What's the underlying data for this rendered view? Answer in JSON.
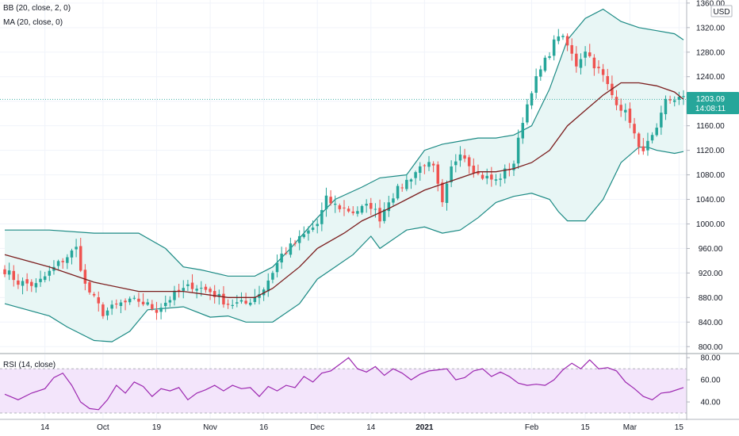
{
  "legend": {
    "bb": "BB (20, close, 2, 0)",
    "ma": "MA (20, close, 0)",
    "rsi": "RSI (14, close)"
  },
  "currency": "USD",
  "last_price": "1203.09",
  "countdown": "14:08:11",
  "colors": {
    "up": "#26a69a",
    "down": "#ef5350",
    "band": "#1b8a84",
    "band_fill": "#e8f6f5",
    "ma": "#7b1d1d",
    "rsi": "#9c27b0",
    "rsi_fill": "#f3e5fb",
    "price_tag": "#26a69a"
  },
  "chart_data": [
    {
      "type": "candlestick",
      "title": "",
      "y_ticks": [
        800,
        840,
        880,
        920,
        960,
        1000,
        1040,
        1080,
        1120,
        1160,
        1200,
        1240,
        1280,
        1320,
        1360
      ],
      "y_tick_labels": [
        "800.00",
        "840.00",
        "880.00",
        "920.00",
        "960.00",
        "1000.00",
        "1040.00",
        "1080.00",
        "1120.00",
        "1160.00",
        "1200.00",
        "1240.00",
        "1280.00",
        "1320.00",
        "1360.00"
      ],
      "ylim": [
        790,
        1365
      ],
      "x_tick_labels": [
        "14",
        "Oct",
        "19",
        "Nov",
        "16",
        "Dec",
        "14",
        "2021",
        "Feb",
        "15",
        "Mar",
        "15"
      ],
      "x_tick_bars": [
        9,
        22,
        34,
        46,
        58,
        70,
        82,
        94,
        118,
        130,
        140,
        151
      ],
      "bold_ticks": [
        "2021"
      ],
      "bars": 153,
      "anchors": {
        "bar": [
          0,
          3,
          7,
          12,
          16,
          18,
          22,
          26,
          30,
          34,
          38,
          42,
          46,
          50,
          54,
          58,
          62,
          66,
          70,
          72,
          74,
          78,
          82,
          84,
          86,
          90,
          94,
          96,
          98,
          100,
          102,
          104,
          106,
          110,
          114,
          116,
          118,
          122,
          124,
          126,
          128,
          130,
          132,
          134,
          136,
          138,
          140,
          142,
          144,
          146,
          148,
          150,
          152
        ],
        "close": [
          925,
          905,
          900,
          935,
          960,
          900,
          855,
          870,
          875,
          860,
          885,
          900,
          890,
          870,
          870,
          895,
          950,
          975,
          1000,
          1040,
          1030,
          1020,
          1030,
          1010,
          1040,
          1070,
          1100,
          1090,
          1030,
          1090,
          1120,
          1100,
          1080,
          1070,
          1100,
          1170,
          1220,
          1280,
          1310,
          1290,
          1260,
          1285,
          1260,
          1240,
          1210,
          1190,
          1170,
          1120,
          1130,
          1150,
          1200,
          1205,
          1203
        ]
      },
      "bollinger_upper": {
        "bar": [
          0,
          10,
          20,
          30,
          36,
          40,
          44,
          50,
          56,
          60,
          64,
          70,
          74,
          80,
          84,
          90,
          94,
          98,
          102,
          106,
          110,
          114,
          118,
          122,
          126,
          130,
          134,
          138,
          142,
          146,
          150,
          152
        ],
        "value": [
          990,
          990,
          985,
          985,
          960,
          930,
          925,
          915,
          915,
          930,
          960,
          1010,
          1040,
          1060,
          1075,
          1080,
          1120,
          1130,
          1135,
          1140,
          1140,
          1145,
          1160,
          1220,
          1300,
          1335,
          1350,
          1330,
          1320,
          1315,
          1310,
          1300
        ]
      },
      "bollinger_lower": {
        "bar": [
          0,
          10,
          14,
          20,
          24,
          28,
          32,
          40,
          46,
          50,
          54,
          60,
          66,
          70,
          74,
          78,
          82,
          84,
          90,
          94,
          98,
          102,
          106,
          110,
          114,
          118,
          122,
          124,
          126,
          130,
          134,
          138,
          142,
          144,
          146,
          150,
          152
        ],
        "value": [
          870,
          850,
          832,
          810,
          808,
          825,
          860,
          865,
          848,
          850,
          840,
          840,
          870,
          910,
          930,
          950,
          980,
          960,
          990,
          995,
          985,
          990,
          1010,
          1035,
          1045,
          1050,
          1040,
          1020,
          1005,
          1005,
          1040,
          1100,
          1125,
          1125,
          1120,
          1115,
          1118
        ]
      },
      "moving_average": {
        "bar": [
          0,
          10,
          20,
          30,
          40,
          50,
          56,
          60,
          66,
          70,
          76,
          80,
          86,
          90,
          94,
          100,
          106,
          110,
          114,
          118,
          122,
          126,
          130,
          134,
          138,
          142,
          146,
          150,
          152
        ],
        "value": [
          950,
          930,
          905,
          890,
          890,
          880,
          880,
          895,
          930,
          960,
          985,
          1005,
          1025,
          1040,
          1055,
          1070,
          1085,
          1085,
          1090,
          1100,
          1120,
          1160,
          1185,
          1210,
          1230,
          1230,
          1225,
          1215,
          1203
        ]
      }
    },
    {
      "type": "line",
      "title": "RSI (14, close)",
      "y_ticks": [
        40,
        60,
        80
      ],
      "y_tick_labels": [
        "40.00",
        "60.00",
        "80.00"
      ],
      "ylim": [
        25,
        83
      ],
      "bands": [
        30,
        70
      ],
      "rsi": {
        "bar": [
          0,
          3,
          6,
          9,
          11,
          13,
          15,
          17,
          19,
          21,
          23,
          25,
          27,
          29,
          31,
          33,
          35,
          37,
          39,
          41,
          43,
          45,
          47,
          49,
          51,
          53,
          55,
          57,
          59,
          61,
          63,
          65,
          67,
          69,
          71,
          73,
          75,
          77,
          79,
          81,
          83,
          85,
          87,
          89,
          91,
          93,
          95,
          97,
          99,
          101,
          103,
          105,
          107,
          109,
          111,
          113,
          115,
          117,
          119,
          121,
          123,
          125,
          127,
          129,
          131,
          133,
          135,
          137,
          139,
          141,
          143,
          145,
          147,
          149,
          152
        ],
        "value": [
          47,
          42,
          48,
          52,
          62,
          66,
          55,
          40,
          34,
          33,
          42,
          55,
          48,
          58,
          54,
          45,
          52,
          50,
          53,
          42,
          48,
          51,
          55,
          50,
          55,
          52,
          53,
          45,
          54,
          50,
          55,
          53,
          63,
          58,
          66,
          68,
          74,
          80,
          70,
          67,
          72,
          64,
          70,
          66,
          60,
          65,
          68,
          69,
          70,
          60,
          62,
          68,
          70,
          63,
          67,
          63,
          57,
          55,
          56,
          55,
          60,
          69,
          75,
          70,
          78,
          70,
          71,
          68,
          58,
          52,
          45,
          42,
          48,
          49,
          53
        ]
      }
    }
  ]
}
